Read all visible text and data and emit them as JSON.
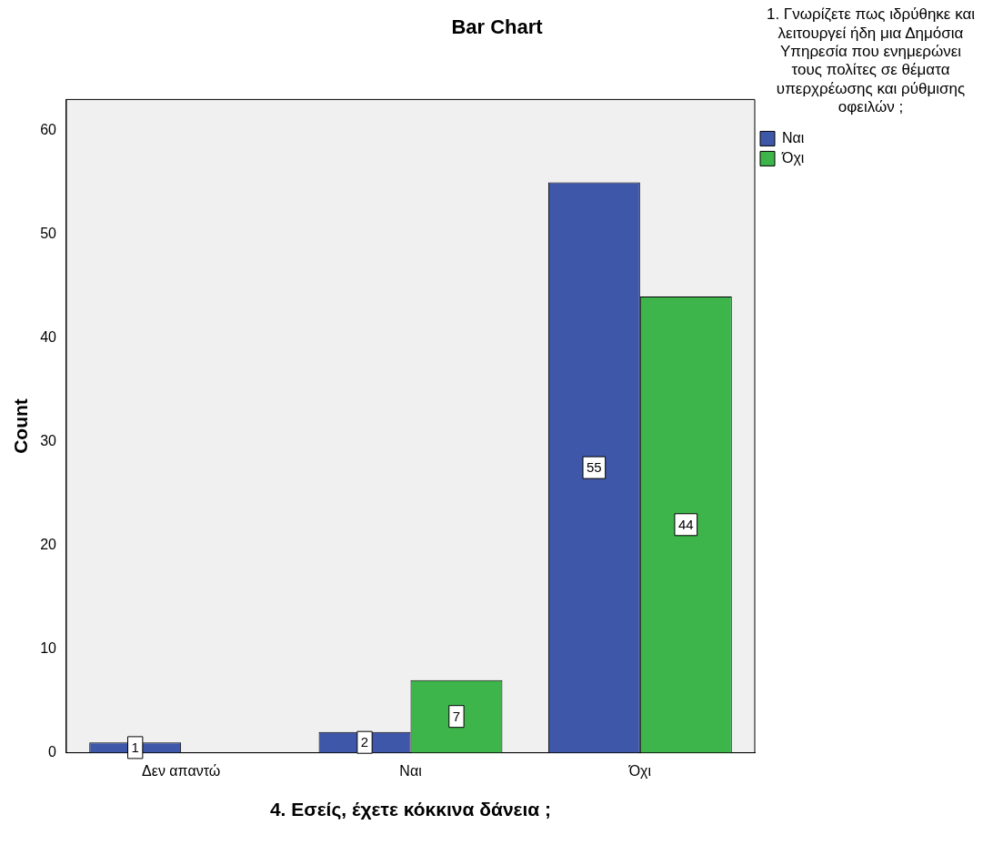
{
  "chart_data": {
    "type": "bar",
    "title": "Bar Chart",
    "xlabel": "4. Εσείς, έχετε κόκκινα δάνεια ;",
    "ylabel": "Count",
    "legend_title": "1. Γνωρίζετε πως ιδρύθηκε και λειτουργεί ήδη μια Δημόσια Υπηρεσία που ενημερώνει τους πολίτες σε θέματα υπερχρέωσης και ρύθμισης οφειλών ;",
    "categories": [
      "Δεν απαντώ",
      "Ναι",
      "Όχι"
    ],
    "series": [
      {
        "name": "Ναι",
        "color": "#3f57a8",
        "values": [
          1,
          2,
          55
        ]
      },
      {
        "name": "Όχι",
        "color": "#3db54a",
        "values": [
          null,
          7,
          44
        ]
      }
    ],
    "ylim": [
      0,
      63
    ],
    "yticks": [
      0,
      10,
      20,
      30,
      40,
      50,
      60
    ],
    "grid": false,
    "legend": "right",
    "data_labels": true
  }
}
